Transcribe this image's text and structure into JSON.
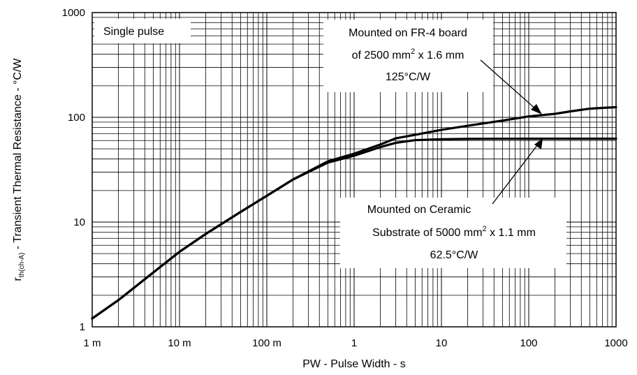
{
  "chart_data": {
    "type": "line",
    "xscale": "log",
    "yscale": "log",
    "xlim": [
      0.001,
      1000
    ],
    "ylim": [
      1,
      1000
    ],
    "grid": true,
    "xlabel": "PW - Pulse Width - s",
    "ylabel_main": "r",
    "ylabel_sub": "th(ch-A)",
    "ylabel_rest": " - Transient Thermal Resistance - °C/W",
    "x_ticks": [
      {
        "value": 0.001,
        "label": "1 m"
      },
      {
        "value": 0.01,
        "label": "10 m"
      },
      {
        "value": 0.1,
        "label": "100 m"
      },
      {
        "value": 1,
        "label": "1"
      },
      {
        "value": 10,
        "label": "10"
      },
      {
        "value": 100,
        "label": "100"
      },
      {
        "value": 1000,
        "label": "1000"
      }
    ],
    "y_ticks": [
      {
        "value": 1,
        "label": "1"
      },
      {
        "value": 10,
        "label": "10"
      },
      {
        "value": 100,
        "label": "100"
      },
      {
        "value": 1000,
        "label": "1000"
      }
    ],
    "series": [
      {
        "name": "Mounted on FR-4 board of 2500 mm² x 1.6 mm 125°C/W",
        "x": [
          0.001,
          0.002,
          0.005,
          0.01,
          0.02,
          0.05,
          0.1,
          0.2,
          0.5,
          1,
          2,
          3,
          5,
          10,
          20,
          50,
          100,
          200,
          300,
          500,
          700,
          1000
        ],
        "y": [
          1.2,
          1.8,
          3.3,
          5.2,
          7.7,
          12.5,
          17.8,
          25.5,
          38,
          45,
          55,
          63,
          68,
          76,
          83,
          93,
          102,
          108,
          114,
          121,
          123,
          125
        ]
      },
      {
        "name": "Mounted on Ceramic Substrate of 5000 mm² x 1.1 mm 62.5°C/W",
        "x": [
          0.001,
          0.002,
          0.005,
          0.01,
          0.02,
          0.05,
          0.1,
          0.2,
          0.5,
          1,
          2,
          3,
          5,
          10,
          20,
          50,
          100,
          1000
        ],
        "y": [
          1.2,
          1.8,
          3.3,
          5.2,
          7.7,
          12.5,
          17.8,
          25.5,
          37,
          43,
          52,
          57,
          60.5,
          61.8,
          62.2,
          62.4,
          62.5,
          62.5
        ]
      }
    ],
    "annotations": {
      "single_pulse": "Single pulse",
      "fr4": {
        "line1": "Mounted on FR-4 board",
        "line2_pre": "of 2500 mm",
        "line2_sup": "2",
        "line2_post": " x 1.6 mm",
        "line3": "125°C/W"
      },
      "ceramic": {
        "line1": "Mounted on Ceramic",
        "line2_pre": "Substrate of 5000 mm",
        "line2_sup": "2",
        "line2_post": " x 1.1 mm",
        "line3": "62.5°C/W"
      }
    },
    "colors": {
      "line": "#000000",
      "grid": "#000000",
      "background": "#ffffff"
    }
  }
}
